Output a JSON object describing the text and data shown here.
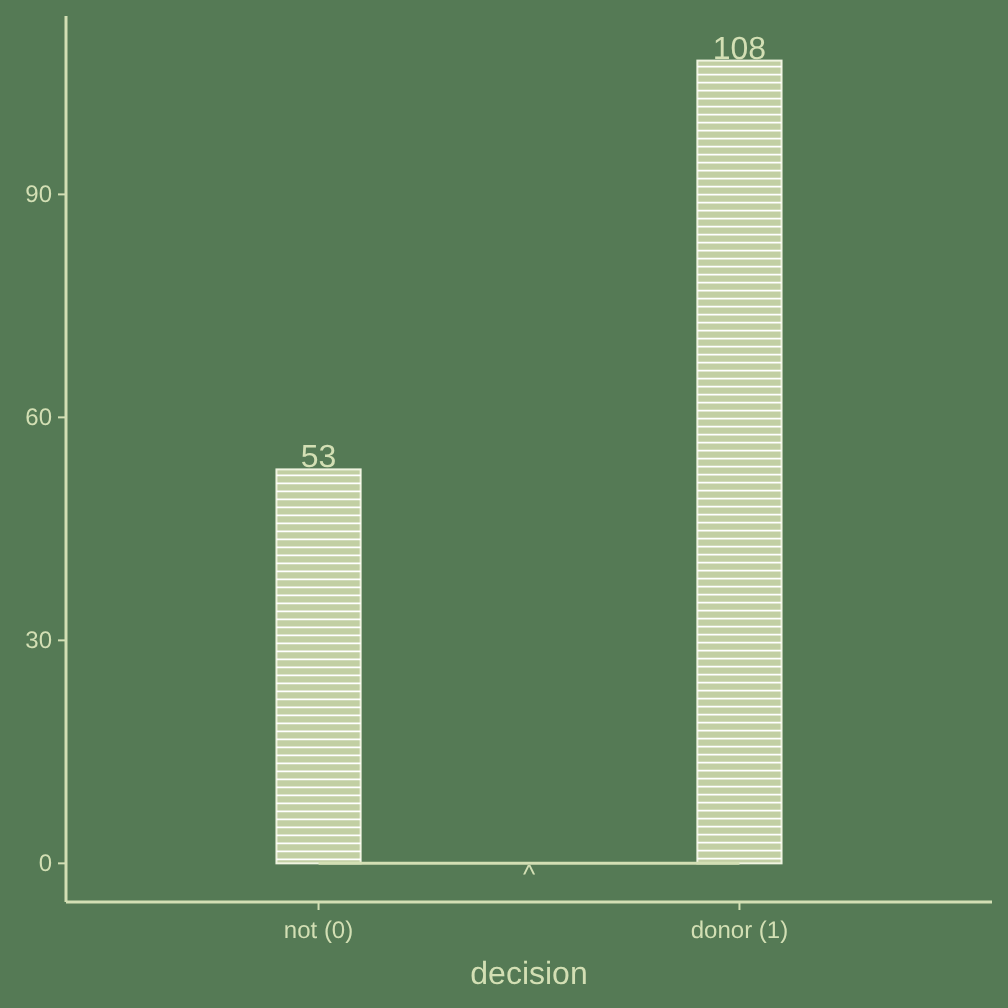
{
  "chart_data": {
    "type": "bar",
    "xlabel": "decision",
    "categories": [
      "not (0)",
      "donor (1)"
    ],
    "values": [
      53,
      108
    ],
    "color": "#c2cfa3",
    "data_labels": true,
    "ylim": [
      -5.2,
      114
    ],
    "yticks": [
      0,
      30,
      60,
      90
    ],
    "grid": false,
    "ref_lines": [
      {
        "axis": "y",
        "value": 0,
        "label": "^"
      }
    ]
  }
}
